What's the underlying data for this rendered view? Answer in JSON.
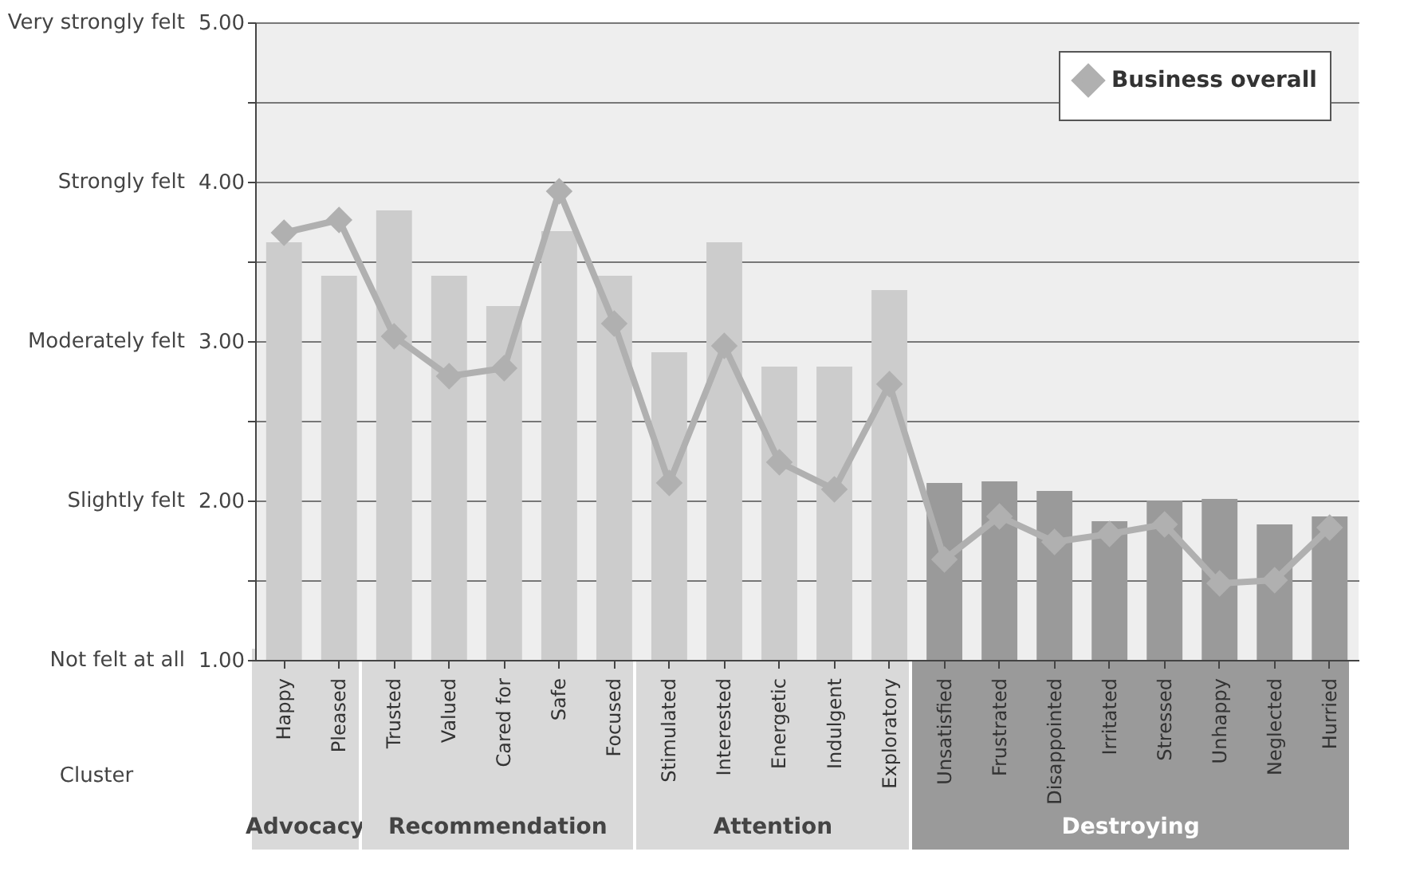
{
  "chart_data": {
    "type": "bar",
    "xlabel": "Cluster",
    "categories": [
      "Happy",
      "Pleased",
      "Trusted",
      "Valued",
      "Cared for",
      "Safe",
      "Focused",
      "Stimulated",
      "Interested",
      "Energetic",
      "Indulgent",
      "Exploratory",
      "Unsatisfied",
      "Frustrated",
      "Disappointed",
      "Irritated",
      "Stressed",
      "Unhappy",
      "Neglected",
      "Hurried"
    ],
    "series": [
      {
        "colors": [
          "#cccccc",
          "#cccccc",
          "#cccccc",
          "#cccccc",
          "#cccccc",
          "#cccccc",
          "#cccccc",
          "#cccccc",
          "#cccccc",
          "#cccccc",
          "#cccccc",
          "#cccccc",
          "#9a9a9a",
          "#9a9a9a",
          "#9a9a9a",
          "#9a9a9a",
          "#9a9a9a",
          "#9a9a9a",
          "#9a9a9a",
          "#9a9a9a"
        ],
        "values": [
          3.62,
          3.41,
          3.82,
          3.41,
          3.22,
          3.69,
          3.41,
          2.93,
          3.62,
          2.84,
          2.84,
          3.32,
          2.11,
          2.12,
          2.06,
          1.87,
          2.0,
          2.01,
          1.85,
          1.9
        ]
      },
      {
        "type": "line",
        "name": "Business overall",
        "color": "#b0b0b0",
        "marker": "diamond",
        "values": [
          3.68,
          3.76,
          3.03,
          2.78,
          2.83,
          3.94,
          3.11,
          2.11,
          2.97,
          2.24,
          2.07,
          2.73,
          1.63,
          1.9,
          1.74,
          1.79,
          1.85,
          1.48,
          1.5,
          1.83
        ]
      }
    ],
    "ylim": [
      1,
      5
    ],
    "yticks": [
      {
        "value": 1,
        "label": "1.00"
      },
      {
        "value": 1.5,
        "label": null
      },
      {
        "value": 2,
        "label": "2.00"
      },
      {
        "value": 2.5,
        "label": null
      },
      {
        "value": 3,
        "label": "3.00"
      },
      {
        "value": 3.5,
        "label": null
      },
      {
        "value": 4,
        "label": "4.00"
      },
      {
        "value": 4.5,
        "label": null
      },
      {
        "value": 5,
        "label": "5.00"
      }
    ],
    "grid": "y",
    "legend": "top right",
    "annotations": [
      "Not felt at all",
      "Slightly felt",
      "Moderately felt",
      "Strongly felt",
      "Very strongly felt",
      "Advocacy",
      "Recommendation",
      "Attention",
      "Destroying"
    ]
  }
}
